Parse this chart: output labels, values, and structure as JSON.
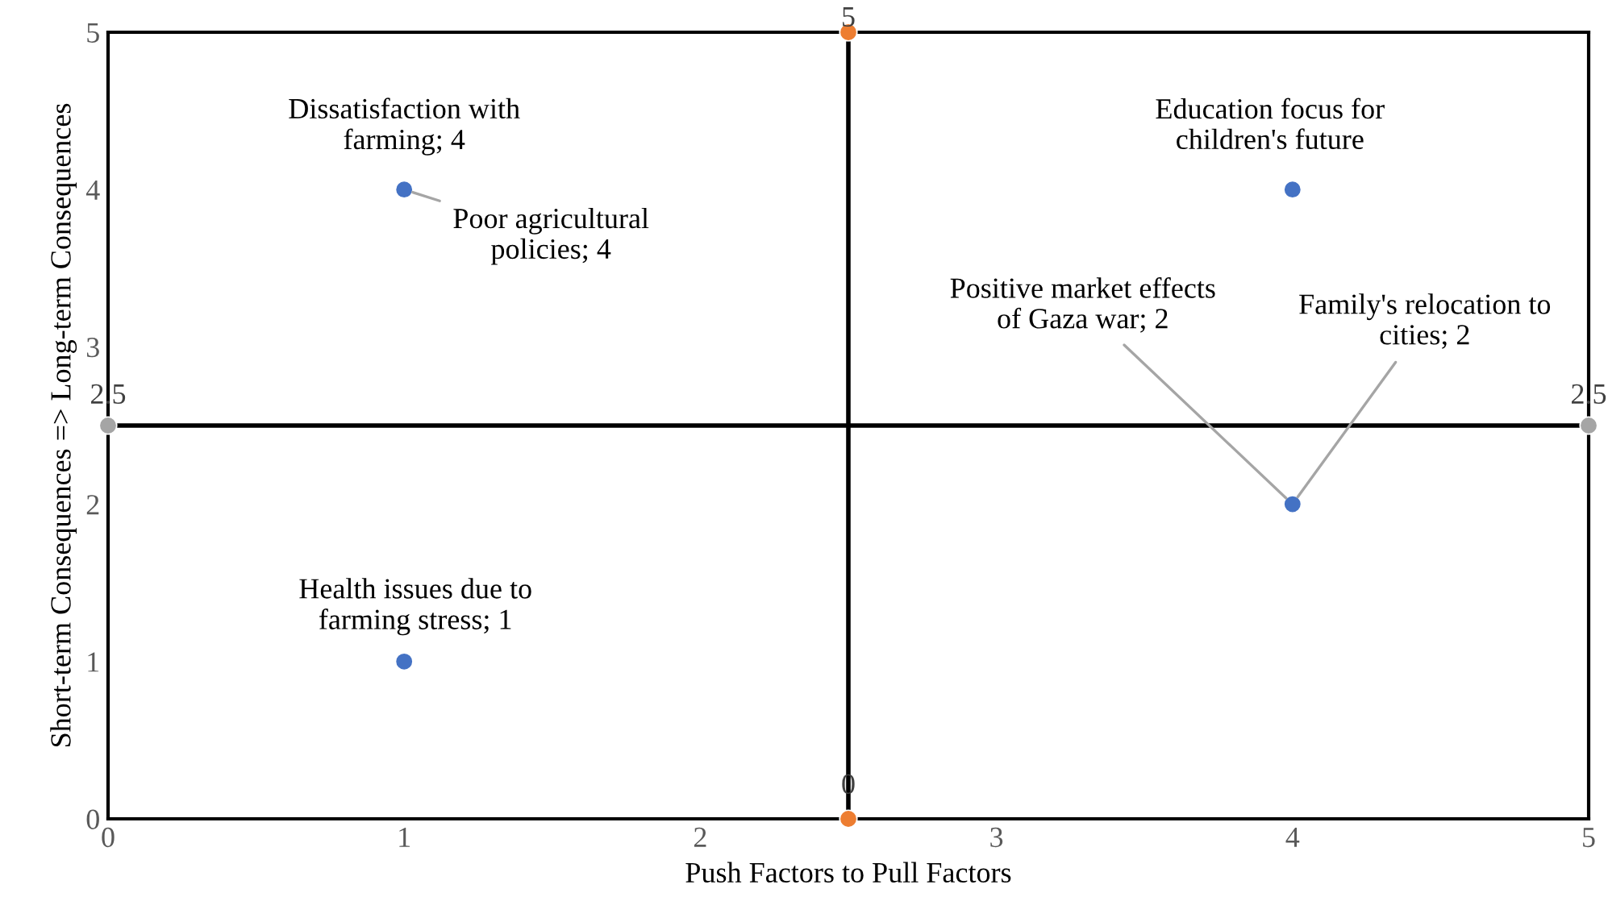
{
  "chart_data": {
    "type": "scatter",
    "xlabel": "Push Factors to Pull Factors",
    "ylabel": "Short-term Consequences => Long-term Consequences",
    "xlim": [
      0,
      5
    ],
    "ylim": [
      0,
      5
    ],
    "xticks": [
      0,
      1,
      2,
      3,
      4,
      5
    ],
    "yticks": [
      0,
      1,
      2,
      3,
      4,
      5
    ],
    "grid": false,
    "marker": "circle",
    "annotations": [
      {
        "text": "Poor agricultural\npolicies; 4",
        "x": 1,
        "y": 4
      },
      {
        "text": "Family's relocation to\ncities; 2",
        "x": 4,
        "y": 2
      }
    ],
    "series": [
      {
        "color": "#4472c4",
        "x": [
          1,
          4,
          4,
          1
        ],
        "values": [
          4,
          4,
          2,
          1
        ],
        "value_labels": [
          "Dissatisfaction with\nfarming; 4",
          "Education focus for\nchildren's future",
          "Positive market effects\nof Gaza war; 2",
          "Health issues due to\nfarming stress; 1"
        ]
      },
      {
        "type": "line",
        "color": "#a5a5a5",
        "x": [
          0,
          5
        ],
        "values": [
          2.5,
          2.5
        ],
        "value_labels": [
          "2.5",
          "2.5"
        ]
      },
      {
        "type": "line",
        "color": "#ed7d31",
        "x": [
          2.5,
          2.5
        ],
        "values": [
          0,
          5
        ],
        "value_labels": [
          "0",
          "5"
        ]
      }
    ]
  }
}
